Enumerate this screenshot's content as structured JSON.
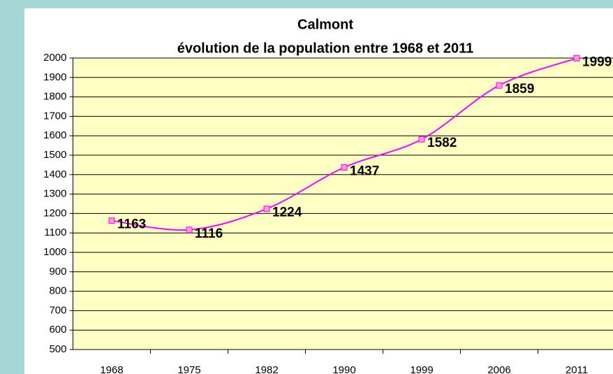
{
  "chart_data": {
    "type": "line",
    "title": "Calmont",
    "subtitle": "évolution de la population entre 1968 et 2011",
    "categories": [
      "1968",
      "1975",
      "1982",
      "1990",
      "1999",
      "2006",
      "2011"
    ],
    "series": [
      {
        "name": "population",
        "color": "#ff00ff",
        "values": [
          1163,
          1116,
          1224,
          1437,
          1582,
          1859,
          1999
        ]
      }
    ],
    "ylim": [
      500,
      2000
    ],
    "yticks": [
      500,
      600,
      700,
      800,
      900,
      1000,
      1100,
      1200,
      1300,
      1400,
      1500,
      1600,
      1700,
      1800,
      1900,
      2000
    ],
    "grid": true,
    "smooth": true,
    "plot_background": "#ffffc4"
  }
}
